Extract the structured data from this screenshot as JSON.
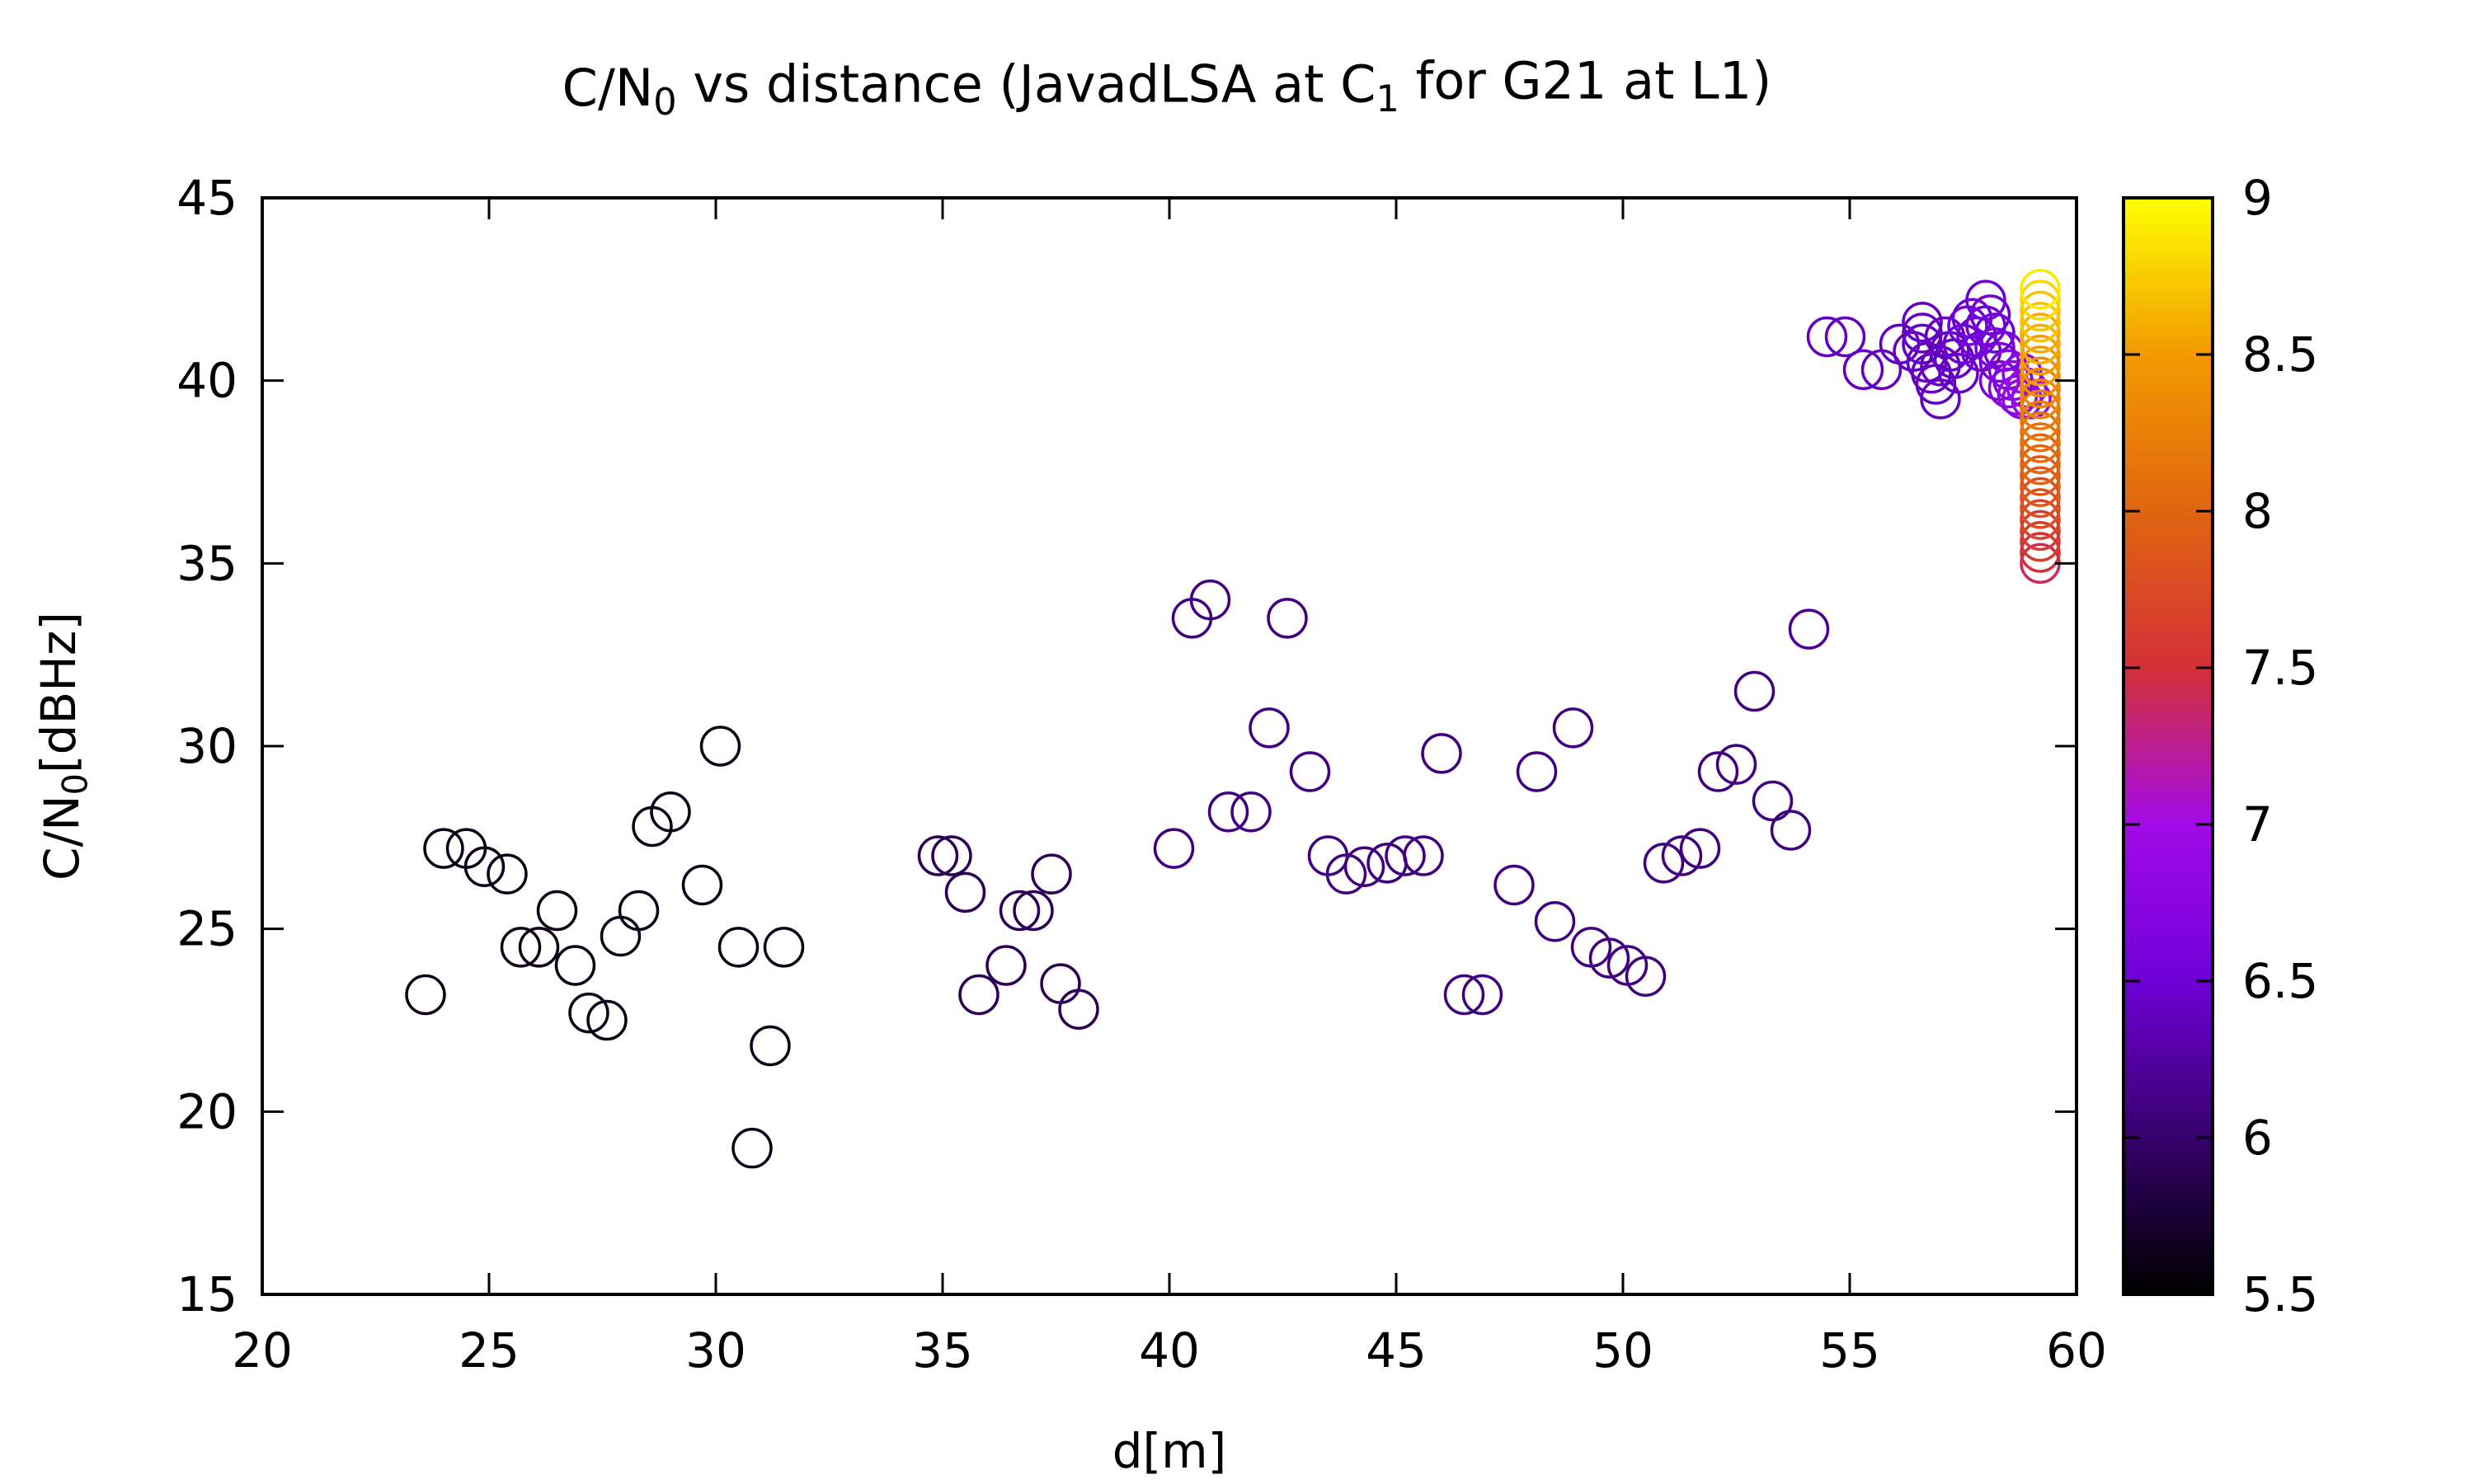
{
  "chart_data": {
    "type": "scatter",
    "title": {
      "parts": [
        {
          "t": "C/N"
        },
        {
          "t": "0",
          "sub": true
        },
        {
          "t": " vs distance (JavadLSA at C"
        },
        {
          "t": "1",
          "sub": true
        },
        {
          "t": " for G21 at L1)"
        }
      ]
    },
    "xlabel": "d[m]",
    "ylabel": {
      "parts": [
        {
          "t": "C/N"
        },
        {
          "t": "0",
          "sub": true
        },
        {
          "t": "[dBHz]"
        }
      ]
    },
    "xlim": [
      20,
      60
    ],
    "ylim": [
      15,
      45
    ],
    "xticks": [
      "20",
      "25",
      "30",
      "35",
      "40",
      "45",
      "50",
      "55",
      "60"
    ],
    "yticks": [
      "15",
      "20",
      "25",
      "30",
      "35",
      "40",
      "45"
    ],
    "colorbar": {
      "range": [
        5.5,
        9
      ],
      "ticks": [
        "5.5",
        "6",
        "6.5",
        "7",
        "7.5",
        "8",
        "8.5",
        "9"
      ],
      "palette": [
        "#000000",
        "#36006b",
        "#6f00d8",
        "#a30be8",
        "#d43038",
        "#e06510",
        "#f29a00",
        "#ffff00"
      ]
    },
    "marker": "open-circle",
    "points": [
      [
        23.6,
        23.2,
        5.6
      ],
      [
        24.0,
        27.2,
        5.6
      ],
      [
        24.5,
        27.2,
        5.6
      ],
      [
        24.9,
        26.7,
        5.6
      ],
      [
        25.4,
        26.5,
        5.6
      ],
      [
        25.7,
        24.5,
        5.6
      ],
      [
        26.1,
        24.5,
        5.6
      ],
      [
        26.5,
        25.5,
        5.6
      ],
      [
        26.9,
        24.0,
        5.6
      ],
      [
        27.2,
        22.7,
        5.6
      ],
      [
        27.6,
        22.5,
        5.6
      ],
      [
        27.9,
        24.8,
        5.6
      ],
      [
        28.3,
        25.5,
        5.6
      ],
      [
        28.6,
        27.8,
        5.6
      ],
      [
        29.0,
        28.2,
        5.6
      ],
      [
        29.7,
        26.2,
        5.6
      ],
      [
        30.1,
        30.0,
        5.6
      ],
      [
        30.5,
        24.5,
        5.6
      ],
      [
        30.8,
        19.0,
        5.6
      ],
      [
        31.2,
        21.8,
        5.6
      ],
      [
        31.5,
        24.5,
        5.6
      ],
      [
        34.9,
        27.0,
        5.9
      ],
      [
        35.2,
        27.0,
        5.9
      ],
      [
        35.5,
        26.0,
        5.9
      ],
      [
        35.8,
        23.2,
        5.9
      ],
      [
        36.4,
        24.0,
        5.9
      ],
      [
        36.7,
        25.5,
        5.9
      ],
      [
        37.0,
        25.5,
        5.9
      ],
      [
        37.4,
        26.5,
        5.9
      ],
      [
        37.6,
        23.5,
        5.9
      ],
      [
        38.0,
        22.8,
        5.9
      ],
      [
        40.1,
        27.2,
        6.1
      ],
      [
        40.5,
        33.5,
        6.1
      ],
      [
        40.9,
        34.0,
        6.1
      ],
      [
        41.3,
        28.2,
        6.1
      ],
      [
        41.8,
        28.2,
        6.1
      ],
      [
        42.2,
        30.5,
        6.1
      ],
      [
        42.6,
        33.5,
        6.1
      ],
      [
        43.1,
        29.3,
        6.1
      ],
      [
        43.5,
        27.0,
        6.1
      ],
      [
        43.9,
        26.5,
        6.1
      ],
      [
        44.3,
        26.7,
        6.1
      ],
      [
        44.8,
        26.8,
        6.1
      ],
      [
        45.2,
        27.0,
        6.1
      ],
      [
        45.6,
        27.0,
        6.1
      ],
      [
        46.0,
        29.8,
        6.1
      ],
      [
        46.5,
        23.2,
        6.1
      ],
      [
        46.9,
        23.2,
        6.1
      ],
      [
        47.6,
        26.2,
        6.1
      ],
      [
        48.1,
        29.3,
        6.1
      ],
      [
        48.5,
        25.2,
        6.1
      ],
      [
        48.9,
        30.5,
        6.1
      ],
      [
        49.3,
        24.5,
        6.1
      ],
      [
        49.7,
        24.2,
        6.1
      ],
      [
        50.1,
        24.0,
        6.1
      ],
      [
        50.5,
        23.7,
        6.1
      ],
      [
        50.9,
        26.8,
        6.1
      ],
      [
        51.3,
        27.0,
        6.1
      ],
      [
        51.7,
        27.2,
        6.1
      ],
      [
        52.1,
        29.3,
        6.1
      ],
      [
        52.5,
        29.5,
        6.1
      ],
      [
        52.9,
        31.5,
        6.1
      ],
      [
        53.3,
        28.5,
        6.1
      ],
      [
        53.7,
        27.7,
        6.1
      ],
      [
        54.1,
        33.2,
        6.2
      ],
      [
        54.5,
        41.2,
        6.4
      ],
      [
        54.9,
        41.2,
        6.4
      ],
      [
        55.3,
        40.3,
        6.4
      ],
      [
        55.7,
        40.3,
        6.4
      ],
      [
        56.1,
        41.0,
        6.4
      ],
      [
        56.4,
        40.8,
        6.4
      ],
      [
        56.6,
        41.6,
        6.4
      ],
      [
        56.6,
        41.3,
        6.4
      ],
      [
        56.6,
        41.0,
        6.4
      ],
      [
        56.7,
        40.5,
        6.4
      ],
      [
        56.8,
        40.2,
        6.4
      ],
      [
        56.9,
        39.9,
        6.4
      ],
      [
        57.0,
        39.5,
        6.4
      ],
      [
        57.0,
        40.4,
        6.4
      ],
      [
        57.1,
        41.2,
        6.4
      ],
      [
        57.2,
        40.8,
        6.4
      ],
      [
        57.3,
        40.6,
        6.4
      ],
      [
        57.4,
        40.2,
        6.4
      ],
      [
        57.5,
        41.0,
        6.5
      ],
      [
        57.6,
        41.5,
        6.5
      ],
      [
        57.7,
        41.7,
        6.5
      ],
      [
        57.8,
        41.2,
        6.5
      ],
      [
        57.9,
        40.8,
        6.5
      ],
      [
        58.0,
        42.2,
        6.5
      ],
      [
        58.0,
        41.5,
        6.5
      ],
      [
        58.1,
        41.8,
        6.5
      ],
      [
        58.2,
        41.3,
        6.5
      ],
      [
        58.2,
        40.9,
        6.6
      ],
      [
        58.3,
        40.5,
        6.6
      ],
      [
        58.3,
        40.0,
        6.6
      ],
      [
        58.4,
        40.8,
        6.6
      ],
      [
        58.5,
        40.3,
        6.7
      ],
      [
        58.5,
        39.8,
        6.7
      ],
      [
        58.6,
        40.0,
        6.7
      ],
      [
        58.7,
        39.6,
        6.8
      ],
      [
        58.8,
        40.2,
        6.8
      ],
      [
        58.8,
        39.5,
        6.8
      ],
      [
        58.9,
        39.8,
        6.9
      ],
      [
        59.0,
        39.5,
        6.9
      ],
      [
        59.2,
        35.0,
        7.4
      ],
      [
        59.2,
        35.3,
        7.5
      ],
      [
        59.2,
        35.6,
        7.6
      ],
      [
        59.2,
        35.9,
        7.6
      ],
      [
        59.2,
        36.2,
        7.7
      ],
      [
        59.2,
        36.5,
        7.8
      ],
      [
        59.2,
        36.8,
        7.8
      ],
      [
        59.2,
        37.1,
        7.9
      ],
      [
        59.2,
        37.4,
        7.9
      ],
      [
        59.2,
        37.7,
        8.0
      ],
      [
        59.2,
        38.0,
        8.0
      ],
      [
        59.2,
        38.3,
        8.1
      ],
      [
        59.2,
        38.6,
        8.1
      ],
      [
        59.2,
        38.9,
        8.2
      ],
      [
        59.2,
        39.2,
        8.2
      ],
      [
        59.2,
        39.5,
        8.3
      ],
      [
        59.2,
        39.8,
        8.3
      ],
      [
        59.2,
        40.1,
        8.4
      ],
      [
        59.2,
        40.4,
        8.5
      ],
      [
        59.2,
        40.7,
        8.5
      ],
      [
        59.2,
        41.0,
        8.6
      ],
      [
        59.2,
        41.3,
        8.6
      ],
      [
        59.2,
        41.6,
        8.7
      ],
      [
        59.2,
        41.9,
        8.7
      ],
      [
        59.2,
        42.2,
        8.8
      ],
      [
        59.2,
        42.5,
        8.9
      ]
    ]
  }
}
